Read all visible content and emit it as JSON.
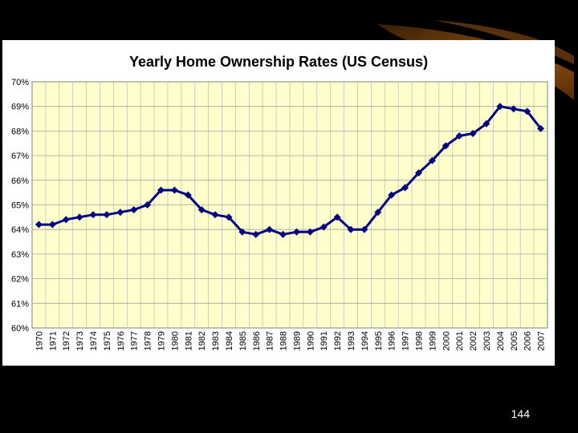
{
  "slide": {
    "page_number": "144"
  },
  "colors": {
    "background": "#000000",
    "plot_area": "#ffffcc",
    "gridline": "#c0c0c0",
    "series_line": "#000080"
  },
  "chart_data": {
    "type": "line",
    "title": "Yearly Home Ownership Rates (US Census)",
    "xlabel": "",
    "ylabel": "",
    "ylim": [
      60,
      70
    ],
    "y_ticks": [
      "60%",
      "61%",
      "62%",
      "63%",
      "64%",
      "65%",
      "66%",
      "67%",
      "68%",
      "69%",
      "70%"
    ],
    "grid": true,
    "legend": "none",
    "x": [
      "1970",
      "1971",
      "1972",
      "1973",
      "1974",
      "1975",
      "1976",
      "1977",
      "1978",
      "1979",
      "1980",
      "1981",
      "1982",
      "1983",
      "1984",
      "1985",
      "1986",
      "1987",
      "1988",
      "1989",
      "1990",
      "1991",
      "1992",
      "1993",
      "1994",
      "1995",
      "1996",
      "1997",
      "1998",
      "1999",
      "2000",
      "2001",
      "2002",
      "2003",
      "2004",
      "2005",
      "2006",
      "2007"
    ],
    "series": [
      {
        "values": [
          64.2,
          64.2,
          64.4,
          64.5,
          64.6,
          64.6,
          64.7,
          64.8,
          65.0,
          65.6,
          65.6,
          65.4,
          64.8,
          64.6,
          64.5,
          63.9,
          63.8,
          64.0,
          63.8,
          63.9,
          63.9,
          64.1,
          64.5,
          64.0,
          64.0,
          64.7,
          65.4,
          65.7,
          66.3,
          66.8,
          67.4,
          67.8,
          67.9,
          68.3,
          69.0,
          68.9,
          68.8,
          68.1
        ]
      }
    ]
  }
}
